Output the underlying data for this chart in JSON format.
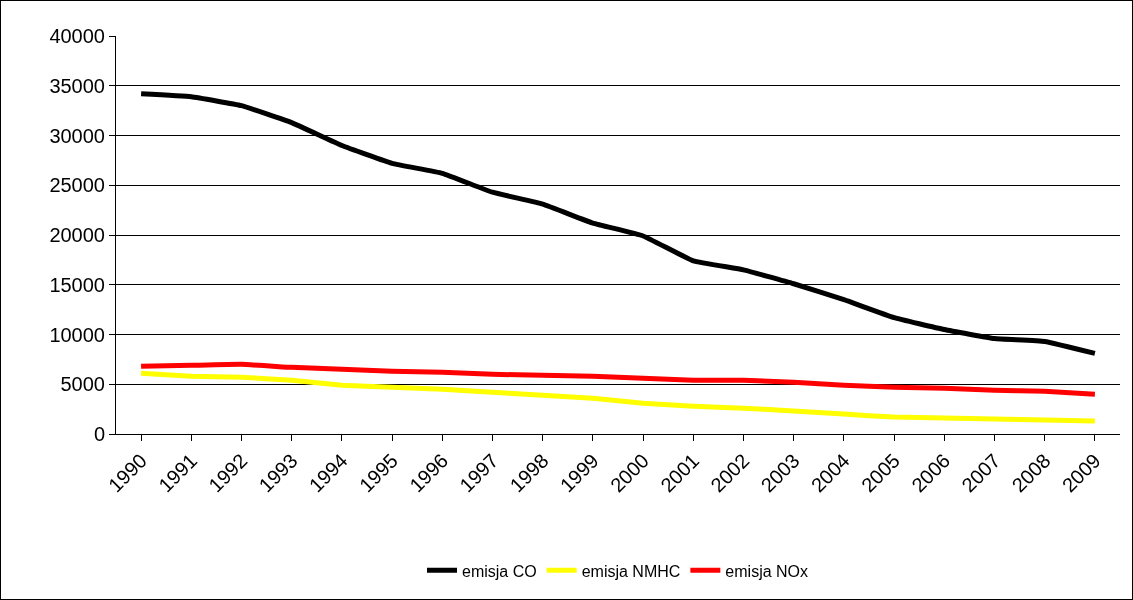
{
  "chart_data": {
    "type": "line",
    "categories": [
      "1990",
      "1991",
      "1992",
      "1993",
      "1994",
      "1995",
      "1996",
      "1997",
      "1998",
      "1999",
      "2000",
      "2001",
      "2002",
      "2003",
      "2004",
      "2005",
      "2006",
      "2007",
      "2008",
      "2009"
    ],
    "series": [
      {
        "name": "emisja CO",
        "color": "#000000",
        "values": [
          34200,
          33900,
          33000,
          31300,
          29000,
          27200,
          26200,
          24300,
          23100,
          21200,
          19900,
          17400,
          16500,
          15100,
          13500,
          11700,
          10500,
          9600,
          9300,
          8100
        ]
      },
      {
        "name": "emisja NMHC",
        "color": "#ffff00",
        "values": [
          6100,
          5800,
          5700,
          5400,
          4900,
          4700,
          4500,
          4200,
          3900,
          3600,
          3100,
          2800,
          2600,
          2300,
          2000,
          1700,
          1600,
          1500,
          1400,
          1300
        ]
      },
      {
        "name": "emisja NOx",
        "color": "#ff0000",
        "values": [
          6800,
          6900,
          7000,
          6700,
          6500,
          6300,
          6200,
          6000,
          5900,
          5800,
          5600,
          5400,
          5400,
          5200,
          4900,
          4700,
          4600,
          4400,
          4300,
          4000
        ]
      }
    ],
    "ylim": [
      0,
      40000
    ],
    "yticks": [
      0,
      5000,
      10000,
      15000,
      20000,
      25000,
      30000,
      35000,
      40000
    ],
    "grid": "y",
    "legend": "bottom",
    "marker": "none",
    "line_style": "solid"
  }
}
